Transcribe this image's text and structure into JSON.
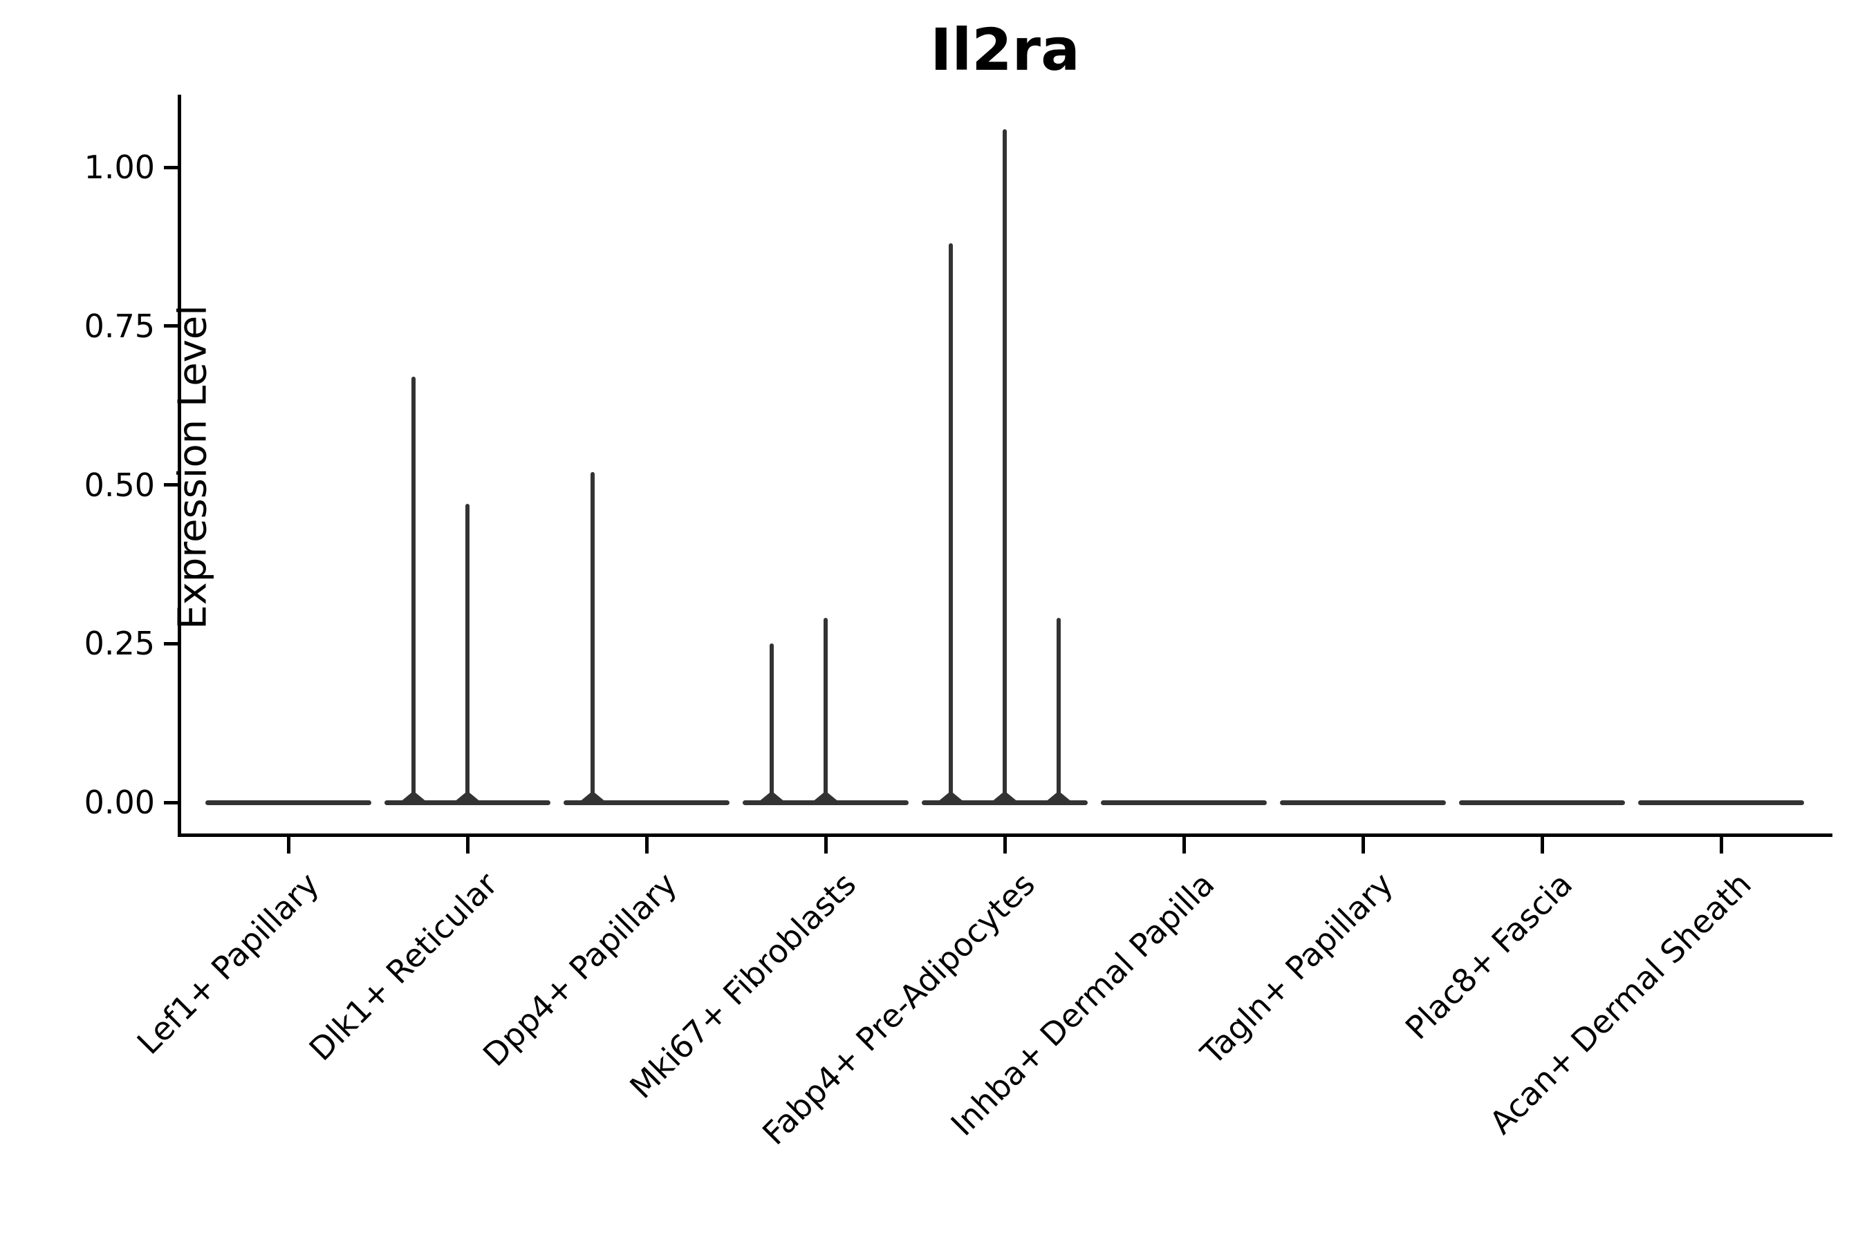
{
  "chart_data": {
    "type": "violin",
    "title": "Il2ra",
    "ylabel": "Expression Level",
    "xlabel": "",
    "categories": [
      "Lef1+ Papillary",
      "Dlk1+ Reticular",
      "Dpp4+ Papillary",
      "Mki67+ Fibroblasts",
      "Fabp4+ Pre-Adipocytes",
      "Inhba+ Dermal Papilla",
      "Tagln+ Papillary",
      "Plac8+ Fascia",
      "Acan+ Dermal Sheath"
    ],
    "yticks": [
      {
        "value": 0.0,
        "label": "0.00"
      },
      {
        "value": 0.25,
        "label": "0.25"
      },
      {
        "value": 0.5,
        "label": "0.50"
      },
      {
        "value": 0.75,
        "label": "0.75"
      },
      {
        "value": 1.0,
        "label": "1.00"
      }
    ],
    "ylim": [
      -0.05,
      1.11
    ],
    "grid": false,
    "legend": "none",
    "baseline_value": 0,
    "violins_per_category": 3,
    "series": [
      {
        "name": "sub-violin-left",
        "max_values": [
          0,
          0.67,
          0.52,
          0.25,
          0.88,
          0,
          0,
          0,
          0
        ]
      },
      {
        "name": "sub-violin-center",
        "max_values": [
          0,
          0.47,
          0,
          0.29,
          1.06,
          0,
          0,
          0,
          0
        ]
      },
      {
        "name": "sub-violin-right",
        "max_values": [
          0,
          0,
          0,
          0,
          0.29,
          0,
          0,
          0,
          0
        ]
      }
    ],
    "colors": {
      "violin": "#333333",
      "axis": "#000000",
      "text": "#000000"
    }
  }
}
